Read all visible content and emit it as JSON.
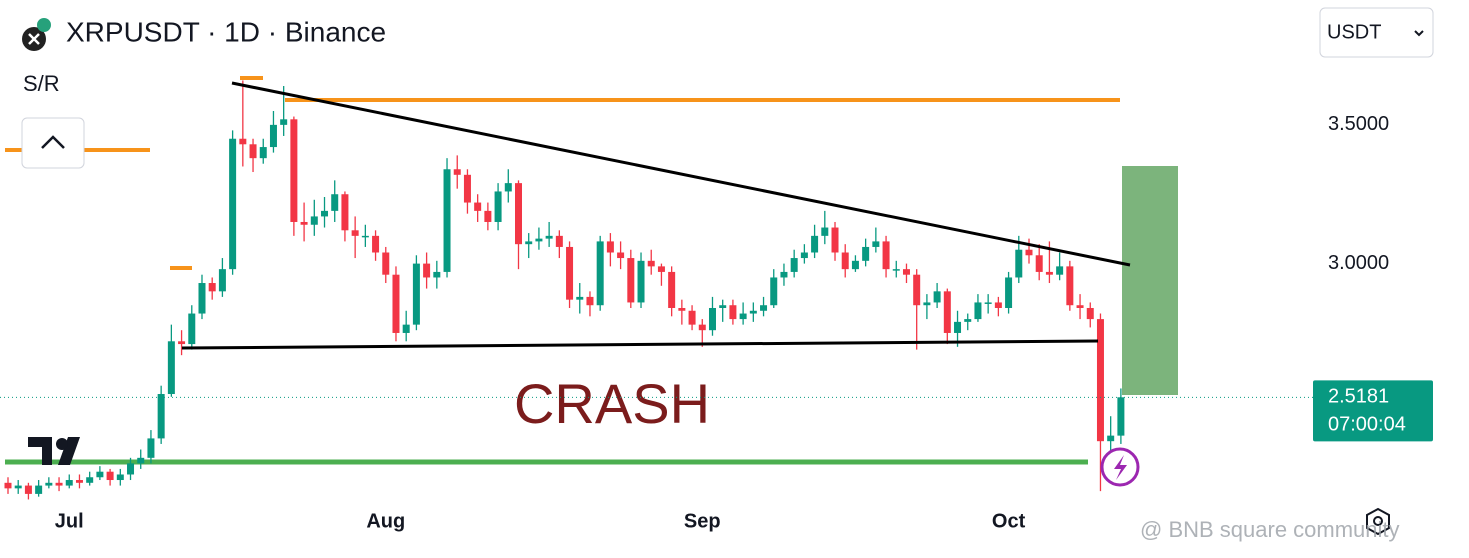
{
  "chart_data": {
    "type": "candlestick",
    "title": "XRPUSDT · 1D · Binance",
    "indicator": "S/R",
    "currency": "USDT",
    "annotation": "CRASH",
    "countdown": "07:00:04",
    "watermark": "@ BNB square community",
    "up_color": "#089981",
    "down_color": "#f23645",
    "grid": false,
    "ylim": [
      2.13,
      3.95
    ],
    "yticks": [
      {
        "value": 3.5,
        "label": "3.5000"
      },
      {
        "value": 3,
        "label": "3.0000"
      }
    ],
    "categories": [
      null,
      null,
      null,
      null,
      null,
      null,
      "Jul",
      null,
      null,
      null,
      null,
      null,
      null,
      null,
      null,
      null,
      null,
      null,
      null,
      null,
      null,
      null,
      null,
      null,
      null,
      null,
      null,
      null,
      null,
      null,
      null,
      null,
      null,
      null,
      null,
      null,
      null,
      "Aug",
      null,
      null,
      null,
      null,
      null,
      null,
      null,
      null,
      null,
      null,
      null,
      null,
      null,
      null,
      null,
      null,
      null,
      null,
      null,
      null,
      null,
      null,
      null,
      null,
      null,
      null,
      null,
      null,
      null,
      null,
      "Sep",
      null,
      null,
      null,
      null,
      null,
      null,
      null,
      null,
      null,
      null,
      null,
      null,
      null,
      null,
      null,
      null,
      null,
      null,
      null,
      null,
      null,
      null,
      null,
      null,
      null,
      null,
      null,
      null,
      null,
      "Oct",
      null,
      null,
      null,
      null,
      null,
      null,
      null,
      null,
      null,
      null,
      null
    ],
    "open": [
      2.21,
      2.19,
      2.2,
      2.17,
      2.2,
      2.21,
      2.2,
      2.22,
      2.21,
      2.23,
      2.25,
      2.22,
      2.24,
      2.28,
      2.3,
      2.37,
      2.53,
      2.72,
      2.71,
      2.82,
      2.93,
      2.9,
      2.98,
      3.45,
      3.43,
      3.38,
      3.42,
      3.5,
      3.52,
      3.15,
      3.14,
      3.17,
      3.19,
      3.25,
      3.12,
      3.1,
      3.1,
      3.04,
      2.96,
      2.75,
      2.78,
      3.0,
      2.95,
      2.97,
      3.34,
      3.32,
      3.22,
      3.19,
      3.15,
      3.26,
      3.29,
      3.07,
      3.08,
      3.09,
      3.1,
      3.06,
      2.87,
      2.88,
      2.85,
      3.08,
      3.04,
      3.02,
      2.86,
      3.01,
      2.99,
      2.97,
      2.84,
      2.83,
      2.78,
      2.76,
      2.84,
      2.85,
      2.8,
      2.82,
      2.83,
      2.85,
      2.95,
      2.97,
      3.02,
      3.04,
      3.1,
      3.13,
      3.04,
      2.98,
      3.01,
      3.06,
      3.08,
      2.98,
      2.98,
      2.96,
      2.85,
      2.86,
      2.9,
      2.75,
      2.79,
      2.8,
      2.86,
      2.86,
      2.84,
      2.95,
      3.05,
      3.03,
      2.97,
      2.96,
      2.99,
      2.85,
      2.84,
      2.8,
      2.36,
      2.38
    ],
    "high": [
      2.23,
      2.22,
      2.21,
      2.22,
      2.23,
      2.23,
      2.24,
      2.24,
      2.25,
      2.27,
      2.26,
      2.26,
      2.3,
      2.33,
      2.4,
      2.56,
      2.78,
      2.76,
      2.85,
      2.96,
      2.95,
      3.02,
      3.48,
      3.66,
      3.45,
      3.45,
      3.55,
      3.64,
      3.53,
      3.22,
      3.23,
      3.24,
      3.3,
      3.26,
      3.17,
      3.14,
      3.12,
      3.06,
      2.99,
      2.83,
      3.03,
      3.04,
      3.01,
      3.38,
      3.39,
      3.34,
      3.25,
      3.22,
      3.29,
      3.34,
      3.3,
      3.11,
      3.13,
      3.15,
      3.12,
      3.08,
      2.93,
      2.9,
      3.1,
      3.11,
      3.08,
      3.05,
      3.04,
      3.05,
      3.0,
      2.99,
      2.87,
      2.85,
      2.8,
      2.88,
      2.87,
      2.87,
      2.86,
      2.86,
      2.88,
      2.98,
      3.0,
      3.05,
      3.07,
      3.14,
      3.19,
      3.15,
      3.07,
      3.03,
      3.09,
      3.13,
      3.1,
      3.01,
      3.0,
      2.98,
      2.89,
      2.93,
      2.91,
      2.83,
      2.82,
      2.89,
      2.89,
      2.88,
      2.97,
      3.1,
      3.09,
      3.07,
      3.08,
      3.04,
      3.01,
      2.89,
      2.86,
      2.82,
      2.45,
      2.55
    ],
    "low": [
      2.17,
      2.17,
      2.15,
      2.16,
      2.19,
      2.18,
      2.19,
      2.19,
      2.2,
      2.22,
      2.2,
      2.2,
      2.22,
      2.26,
      2.28,
      2.35,
      2.52,
      2.67,
      2.69,
      2.8,
      2.87,
      2.88,
      2.96,
      3.35,
      3.33,
      3.36,
      3.4,
      3.46,
      3.1,
      3.08,
      3.1,
      3.13,
      3.15,
      3.08,
      3.02,
      3.06,
      3.01,
      2.93,
      2.72,
      2.72,
      2.76,
      2.91,
      2.91,
      2.95,
      3.27,
      3.18,
      3.15,
      3.12,
      3.12,
      3.22,
      2.98,
      3.02,
      3.05,
      3.06,
      3.02,
      2.84,
      2.82,
      2.81,
      2.83,
      2.99,
      2.98,
      2.84,
      2.84,
      2.96,
      2.92,
      2.81,
      2.78,
      2.76,
      2.7,
      2.74,
      2.79,
      2.78,
      2.78,
      2.79,
      2.81,
      2.84,
      2.92,
      2.95,
      3.0,
      3.02,
      3.07,
      3.01,
      2.95,
      2.97,
      2.99,
      3.04,
      2.95,
      2.95,
      2.93,
      2.69,
      2.8,
      2.84,
      2.71,
      2.7,
      2.76,
      2.79,
      2.82,
      2.81,
      2.82,
      2.93,
      3.0,
      2.94,
      2.93,
      2.94,
      2.83,
      2.8,
      2.77,
      2.18,
      2.26,
      2.35
    ],
    "close": [
      2.19,
      2.2,
      2.17,
      2.2,
      2.21,
      2.2,
      2.22,
      2.21,
      2.23,
      2.25,
      2.22,
      2.24,
      2.28,
      2.3,
      2.37,
      2.53,
      2.72,
      2.71,
      2.82,
      2.93,
      2.9,
      2.98,
      3.45,
      3.43,
      3.38,
      3.42,
      3.5,
      3.52,
      3.15,
      3.14,
      3.17,
      3.19,
      3.25,
      3.12,
      3.1,
      3.1,
      3.04,
      2.96,
      2.75,
      2.78,
      3.0,
      2.95,
      2.97,
      3.34,
      3.32,
      3.22,
      3.19,
      3.15,
      3.26,
      3.29,
      3.07,
      3.08,
      3.09,
      3.1,
      3.06,
      2.87,
      2.88,
      2.85,
      3.08,
      3.04,
      3.02,
      2.86,
      3.01,
      2.99,
      2.97,
      2.84,
      2.83,
      2.78,
      2.76,
      2.84,
      2.85,
      2.8,
      2.82,
      2.83,
      2.85,
      2.95,
      2.97,
      3.02,
      3.04,
      3.1,
      3.13,
      3.04,
      2.98,
      3.01,
      3.06,
      3.08,
      2.98,
      2.98,
      2.96,
      2.85,
      2.86,
      2.9,
      2.75,
      2.79,
      2.8,
      2.86,
      2.86,
      2.84,
      2.95,
      3.05,
      3.03,
      2.97,
      2.96,
      2.99,
      2.85,
      2.84,
      2.8,
      2.36,
      2.38,
      2.5181
    ]
  }
}
